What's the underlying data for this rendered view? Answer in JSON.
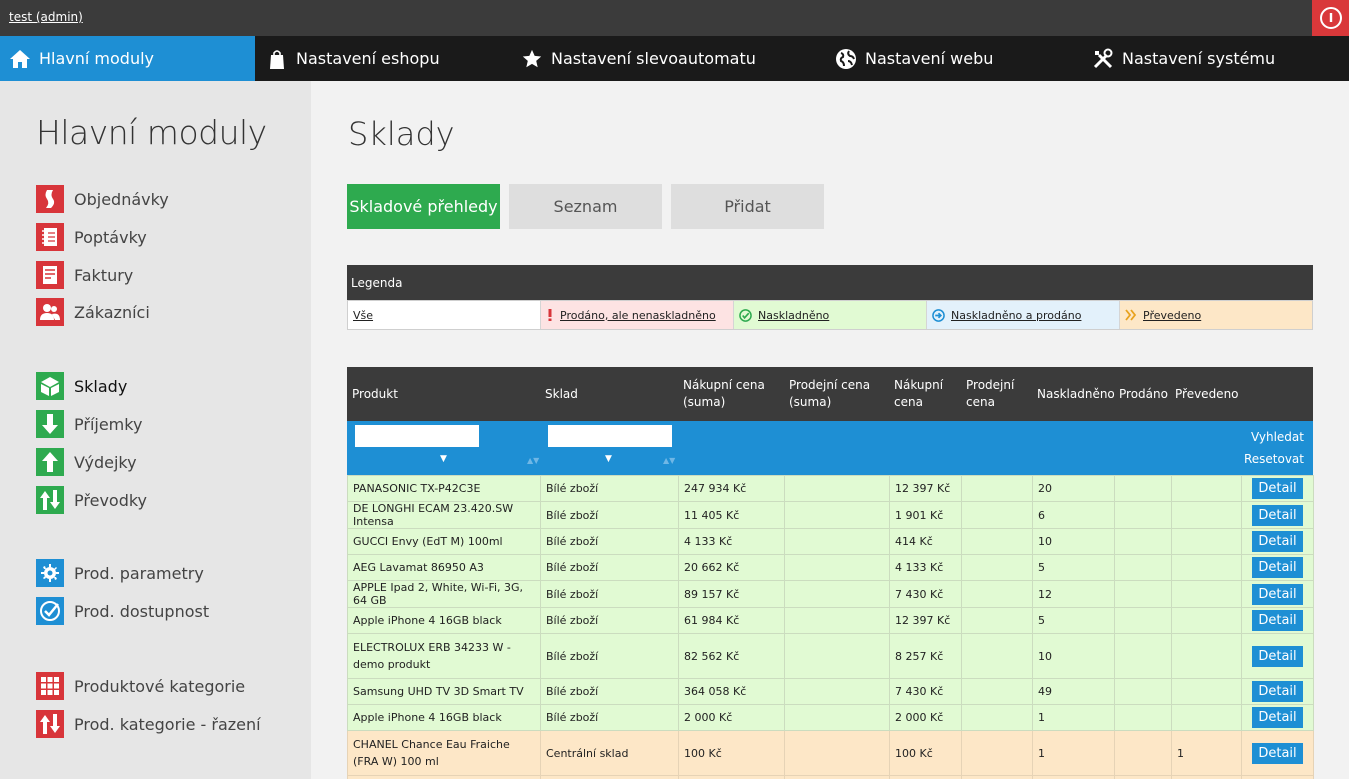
{
  "topbar": {
    "user_label": "test (admin)"
  },
  "nav": [
    {
      "label": "Hlavní moduly",
      "icon": "home-icon"
    },
    {
      "label": "Nastavení eshopu",
      "icon": "shopping-bag-icon"
    },
    {
      "label": "Nastavení slevoautomatu",
      "icon": "star-icon"
    },
    {
      "label": "Nastavení webu",
      "icon": "globe-icon"
    },
    {
      "label": "Nastavení systému",
      "icon": "tools-icon"
    }
  ],
  "sidebar": {
    "title": "Hlavní moduly",
    "items": [
      {
        "label": "Objednávky",
        "icon": "bookmark-icon",
        "color": "#d8353a"
      },
      {
        "label": "Poptávky",
        "icon": "notebook-icon",
        "color": "#d8353a"
      },
      {
        "label": "Faktury",
        "icon": "invoice-icon",
        "color": "#d8353a"
      },
      {
        "label": "Zákazníci",
        "icon": "users-icon",
        "color": "#d8353a"
      },
      {
        "label": "Sklady",
        "icon": "warehouse-box-icon",
        "color": "#2eaa4f"
      },
      {
        "label": "Příjemky",
        "icon": "arrow-down-icon",
        "color": "#2eaa4f"
      },
      {
        "label": "Výdejky",
        "icon": "arrow-up-icon",
        "color": "#2eaa4f"
      },
      {
        "label": "Převodky",
        "icon": "arrows-up-down-icon",
        "color": "#2eaa4f"
      },
      {
        "label": "Prod. parametry",
        "icon": "gear-icon",
        "color": "#1e8fd4"
      },
      {
        "label": "Prod. dostupnost",
        "icon": "check-circle-icon",
        "color": "#1e8fd4"
      },
      {
        "label": "Produktové kategorie",
        "icon": "grid-icon",
        "color": "#d8353a"
      },
      {
        "label": "Prod. kategorie - řazení",
        "icon": "arrows-up-down-icon",
        "color": "#d8353a"
      }
    ]
  },
  "page": {
    "title": "Sklady",
    "tabs": [
      "Skladové přehledy",
      "Seznam",
      "Přidat"
    ]
  },
  "legend": {
    "title": "Legenda",
    "items": [
      {
        "label": "Vše",
        "color": "#ffffff"
      },
      {
        "label": "Prodáno, ale nenaskladněno",
        "color": "#fde3e3",
        "icon": "exclamation-icon"
      },
      {
        "label": "Naskladněno",
        "color": "#e1fad3",
        "icon": "check-circle-icon"
      },
      {
        "label": "Naskladněno a prodáno",
        "color": "#e3f1fb",
        "icon": "arrow-right-circle-icon"
      },
      {
        "label": "Převedeno",
        "color": "#fde7c7",
        "icon": "double-chevron-icon"
      }
    ]
  },
  "table": {
    "headers": [
      "Produkt",
      "Sklad",
      "Nákupní cena (suma)",
      "Prodejní cena (suma)",
      "Nákupní cena",
      "Prodejní cena",
      "Naskladněno",
      "Prodáno",
      "Převedeno"
    ],
    "filter": {
      "search_label": "Vyhledat",
      "reset_label": "Resetovat",
      "product_value": "",
      "warehouse_value": ""
    },
    "detail_label": "Detail",
    "rows": [
      {
        "produkt": "PANASONIC TX-P42C3E",
        "sklad": "Bílé zboží",
        "nakupni_suma": "247 934 Kč",
        "prodejni_suma": "",
        "nakupni": "12 397 Kč",
        "prodejni": "",
        "naskladneno": "20",
        "prodano": "",
        "prevedeno": "",
        "status": "ok"
      },
      {
        "produkt": "DE LONGHI ECAM 23.420.SW Intensa",
        "sklad": "Bílé zboží",
        "nakupni_suma": "11 405 Kč",
        "prodejni_suma": "",
        "nakupni": "1 901 Kč",
        "prodejni": "",
        "naskladneno": "6",
        "prodano": "",
        "prevedeno": "",
        "status": "ok"
      },
      {
        "produkt": "GUCCI Envy (EdT M) 100ml",
        "sklad": "Bílé zboží",
        "nakupni_suma": "4 133 Kč",
        "prodejni_suma": "",
        "nakupni": "414 Kč",
        "prodejni": "",
        "naskladneno": "10",
        "prodano": "",
        "prevedeno": "",
        "status": "ok"
      },
      {
        "produkt": "AEG Lavamat 86950 A3",
        "sklad": "Bílé zboží",
        "nakupni_suma": "20 662 Kč",
        "prodejni_suma": "",
        "nakupni": "4 133 Kč",
        "prodejni": "",
        "naskladneno": "5",
        "prodano": "",
        "prevedeno": "",
        "status": "ok"
      },
      {
        "produkt": "APPLE Ipad 2, White, Wi-Fi, 3G, 64 GB",
        "sklad": "Bílé zboží",
        "nakupni_suma": "89 157 Kč",
        "prodejni_suma": "",
        "nakupni": "7 430 Kč",
        "prodejni": "",
        "naskladneno": "12",
        "prodano": "",
        "prevedeno": "",
        "status": "ok"
      },
      {
        "produkt": "Apple iPhone 4 16GB black",
        "sklad": "Bílé zboží",
        "nakupni_suma": "61 984 Kč",
        "prodejni_suma": "",
        "nakupni": "12 397 Kč",
        "prodejni": "",
        "naskladneno": "5",
        "prodano": "",
        "prevedeno": "",
        "status": "ok"
      },
      {
        "produkt": "ELECTROLUX ERB 34233 W - demo produkt",
        "sklad": "Bílé zboží",
        "nakupni_suma": "82 562 Kč",
        "prodejni_suma": "",
        "nakupni": "8 257 Kč",
        "prodejni": "",
        "naskladneno": "10",
        "prodano": "",
        "prevedeno": "",
        "status": "ok",
        "tall": true
      },
      {
        "produkt": "Samsung UHD TV 3D Smart TV",
        "sklad": "Bílé zboží",
        "nakupni_suma": "364 058 Kč",
        "prodejni_suma": "",
        "nakupni": "7 430 Kč",
        "prodejni": "",
        "naskladneno": "49",
        "prodano": "",
        "prevedeno": "",
        "status": "ok"
      },
      {
        "produkt": "Apple iPhone 4 16GB black",
        "sklad": "Bílé zboží",
        "nakupni_suma": "2 000 Kč",
        "prodejni_suma": "",
        "nakupni": "2 000 Kč",
        "prodejni": "",
        "naskladneno": "1",
        "prodano": "",
        "prevedeno": "",
        "status": "ok"
      },
      {
        "produkt": "CHANEL Chance Eau Fraiche (FRA W) 100 ml",
        "sklad": "Centrální sklad",
        "nakupni_suma": "100 Kč",
        "prodejni_suma": "",
        "nakupni": "100 Kč",
        "prodejni": "",
        "naskladneno": "1",
        "prodano": "",
        "prevedeno": "1",
        "status": "moved",
        "tall": true
      }
    ]
  }
}
